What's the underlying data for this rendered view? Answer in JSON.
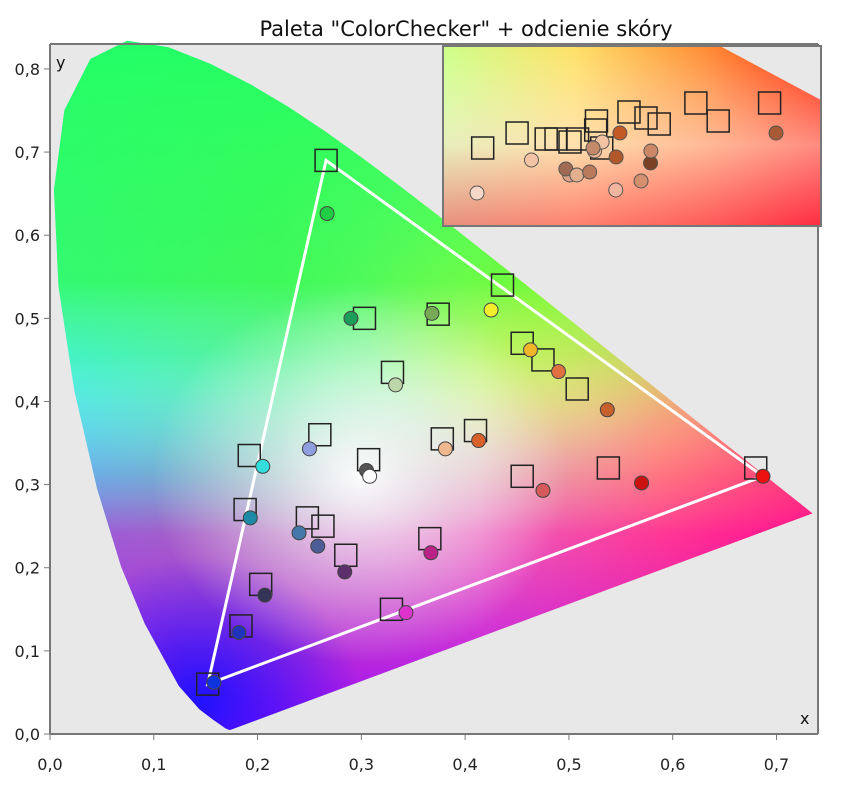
{
  "chart_data": {
    "type": "scatter",
    "title": "Paleta \"ColorChecker\" + odcienie skóry",
    "xlabel": "x",
    "ylabel": "y",
    "xlim": [
      0.0,
      0.74
    ],
    "ylim": [
      0.0,
      0.83
    ],
    "xticks": [
      "0,0",
      "0,1",
      "0,2",
      "0,3",
      "0,4",
      "0,5",
      "0,6",
      "0,7"
    ],
    "yticks": [
      "0,0",
      "0,1",
      "0,2",
      "0,3",
      "0,4",
      "0,5",
      "0,6",
      "0,7",
      "0,8"
    ],
    "grid": false,
    "gamut_triangle": [
      [
        0.64,
        0.33
      ],
      [
        0.3,
        0.6
      ],
      [
        0.15,
        0.06
      ]
    ],
    "measured_gamut_triangle": [
      [
        0.687,
        0.31
      ],
      [
        0.266,
        0.69
      ],
      [
        0.152,
        0.06
      ]
    ],
    "spectral_locus": [
      [
        0.1741,
        0.005
      ],
      [
        0.173,
        0.0048
      ],
      [
        0.1689,
        0.0069
      ],
      [
        0.1644,
        0.0109
      ],
      [
        0.1566,
        0.0177
      ],
      [
        0.144,
        0.0297
      ],
      [
        0.1241,
        0.0578
      ],
      [
        0.0913,
        0.1327
      ],
      [
        0.0687,
        0.2007
      ],
      [
        0.0454,
        0.295
      ],
      [
        0.0235,
        0.4127
      ],
      [
        0.0082,
        0.5384
      ],
      [
        0.0039,
        0.6548
      ],
      [
        0.0139,
        0.7502
      ],
      [
        0.0389,
        0.812
      ],
      [
        0.0743,
        0.8338
      ],
      [
        0.1142,
        0.8262
      ],
      [
        0.1547,
        0.8059
      ],
      [
        0.1929,
        0.7816
      ],
      [
        0.2296,
        0.7543
      ],
      [
        0.2658,
        0.7243
      ],
      [
        0.3016,
        0.6923
      ],
      [
        0.3373,
        0.6589
      ],
      [
        0.3731,
        0.6245
      ],
      [
        0.4087,
        0.5896
      ],
      [
        0.4441,
        0.5547
      ],
      [
        0.4788,
        0.5202
      ],
      [
        0.5125,
        0.4866
      ],
      [
        0.5448,
        0.4544
      ],
      [
        0.5752,
        0.4242
      ],
      [
        0.6029,
        0.3965
      ],
      [
        0.627,
        0.3725
      ],
      [
        0.6482,
        0.3514
      ],
      [
        0.6658,
        0.334
      ],
      [
        0.6801,
        0.3197
      ],
      [
        0.6915,
        0.3083
      ],
      [
        0.7006,
        0.2993
      ],
      [
        0.714,
        0.2859
      ],
      [
        0.7347,
        0.2653
      ]
    ],
    "series": [
      {
        "type": "square",
        "values": [
          [
            0.152,
            0.06
          ],
          [
            0.184,
            0.13
          ],
          [
            0.203,
            0.18
          ],
          [
            0.188,
            0.27
          ],
          [
            0.192,
            0.335
          ],
          [
            0.248,
            0.26
          ],
          [
            0.263,
            0.25
          ],
          [
            0.285,
            0.215
          ],
          [
            0.26,
            0.36
          ],
          [
            0.303,
            0.5
          ],
          [
            0.33,
            0.435
          ],
          [
            0.307,
            0.33
          ],
          [
            0.374,
            0.505
          ],
          [
            0.436,
            0.54
          ],
          [
            0.455,
            0.47
          ],
          [
            0.475,
            0.45
          ],
          [
            0.508,
            0.415
          ],
          [
            0.378,
            0.355
          ],
          [
            0.41,
            0.365
          ],
          [
            0.455,
            0.31
          ],
          [
            0.538,
            0.32
          ],
          [
            0.366,
            0.235
          ],
          [
            0.329,
            0.15
          ],
          [
            0.266,
            0.69
          ],
          [
            0.68,
            0.32
          ]
        ]
      },
      {
        "type": "circle",
        "values": [
          [
            0.158,
            0.062,
            "#1133dd"
          ],
          [
            0.182,
            0.122,
            "#2233bb"
          ],
          [
            0.207,
            0.167,
            "#333355"
          ],
          [
            0.193,
            0.26,
            "#1f8aa6"
          ],
          [
            0.205,
            0.322,
            "#33dddd"
          ],
          [
            0.24,
            0.242,
            "#4477aa"
          ],
          [
            0.258,
            0.226,
            "#4c5c95"
          ],
          [
            0.284,
            0.195,
            "#5c2f6c"
          ],
          [
            0.25,
            0.343,
            "#8f9ede"
          ],
          [
            0.29,
            0.5,
            "#1c9e5a"
          ],
          [
            0.267,
            0.626,
            "#22cc44"
          ],
          [
            0.333,
            0.42,
            "#bcd7a9"
          ],
          [
            0.368,
            0.506,
            "#77aa55"
          ],
          [
            0.425,
            0.51,
            "#f2ee2e"
          ],
          [
            0.463,
            0.462,
            "#f0b62a"
          ],
          [
            0.49,
            0.436,
            "#e07040"
          ],
          [
            0.537,
            0.39,
            "#c6602c"
          ],
          [
            0.381,
            0.343,
            "#f0b88e"
          ],
          [
            0.413,
            0.353,
            "#d9622a"
          ],
          [
            0.475,
            0.293,
            "#d65a5a"
          ],
          [
            0.57,
            0.302,
            "#cc1111"
          ],
          [
            0.687,
            0.31,
            "#ee1111"
          ],
          [
            0.367,
            0.218,
            "#bb2288"
          ],
          [
            0.343,
            0.146,
            "#dd33cc"
          ],
          [
            0.305,
            0.317,
            "#555555"
          ],
          [
            0.308,
            0.31,
            "#ffffff"
          ]
        ]
      }
    ],
    "inset": {
      "squares": [
        [
          0.4355,
          0.326
        ],
        [
          0.4446,
          0.331
        ],
        [
          0.4523,
          0.329
        ],
        [
          0.4549,
          0.329
        ],
        [
          0.4586,
          0.328
        ],
        [
          0.4606,
          0.329
        ],
        [
          0.4656,
          0.335
        ],
        [
          0.4654,
          0.332
        ],
        [
          0.467,
          0.326
        ],
        [
          0.4742,
          0.338
        ],
        [
          0.4787,
          0.336
        ],
        [
          0.4822,
          0.334
        ],
        [
          0.4919,
          0.341
        ],
        [
          0.4978,
          0.335
        ],
        [
          0.5114,
          0.341
        ]
      ],
      "circles": [
        [
          0.434,
          0.311,
          "#f7d8c8"
        ],
        [
          0.4484,
          0.322,
          "#f3c3a6"
        ],
        [
          0.4585,
          0.317,
          "#d9a188"
        ],
        [
          0.4575,
          0.319,
          "#9f6b55"
        ],
        [
          0.4604,
          0.317,
          "#e3b08f"
        ],
        [
          0.4638,
          0.318,
          "#b97a5c"
        ],
        [
          0.4651,
          0.325,
          "#f0b896"
        ],
        [
          0.4671,
          0.328,
          "#f3c4a3"
        ],
        [
          0.4647,
          0.326,
          "#c48a6a"
        ],
        [
          0.4707,
          0.312,
          "#f2b5a0"
        ],
        [
          0.4708,
          0.323,
          "#b0582a"
        ],
        [
          0.4718,
          0.331,
          "#c35a26"
        ],
        [
          0.4774,
          0.315,
          "#d48f6f"
        ],
        [
          0.4799,
          0.321,
          "#7a4024"
        ],
        [
          0.48,
          0.325,
          "#cc8866"
        ],
        [
          0.5131,
          0.331,
          "#a85a35"
        ]
      ]
    }
  }
}
